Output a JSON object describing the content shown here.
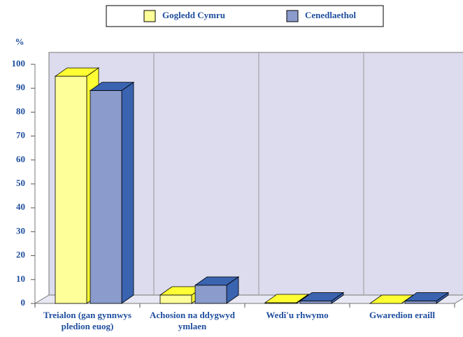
{
  "chart_data": {
    "type": "bar3d",
    "y_label": "%",
    "categories": [
      "Treialon (gan gynnwys pledion euog)",
      "Achosion na ddygwyd ymlaen",
      "Wedi'u rhwymo",
      "Gwaredion eraill"
    ],
    "series": [
      {
        "name": "Gogledd Cymru",
        "color": "#ffff99",
        "values": [
          95,
          3.5,
          0.3,
          0
        ]
      },
      {
        "name": "Cenedlaethol",
        "color": "#8a9bcc",
        "values": [
          89,
          7.6,
          1.0,
          1.0
        ]
      }
    ],
    "ylim": [
      0,
      100
    ],
    "yticks": [
      0,
      10,
      20,
      30,
      40,
      50,
      60,
      70,
      80,
      90,
      100
    ]
  }
}
